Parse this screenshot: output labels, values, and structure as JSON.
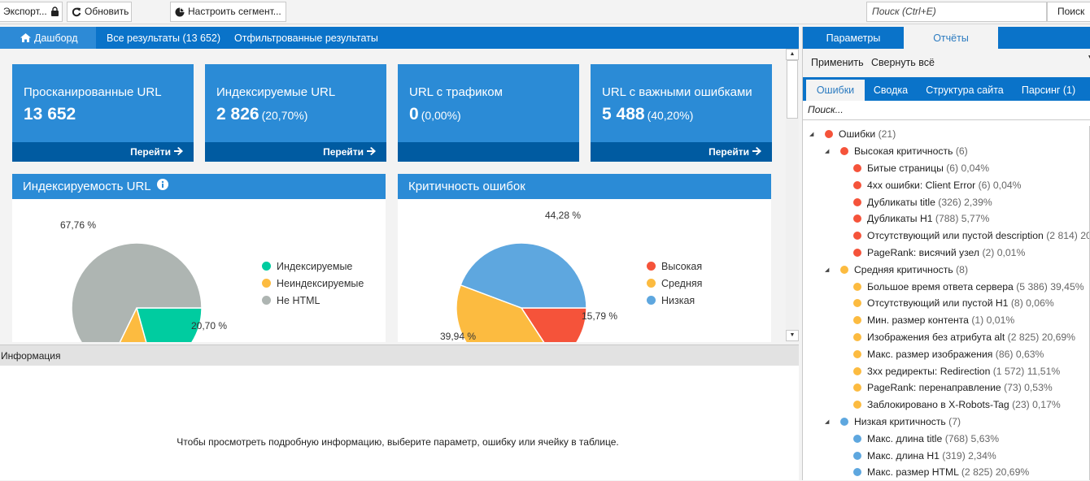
{
  "toolbar": {
    "export_label": "Экспорт...",
    "refresh_label": "Обновить",
    "segment_label": "Настроить сегмент...",
    "search_placeholder": "Поиск (Ctrl+E)",
    "search_button": "Поиск"
  },
  "main_tabs": [
    {
      "label": "Дашборд",
      "icon": "home-icon",
      "active": true
    },
    {
      "label": "Все результаты (13 652)",
      "active": false
    },
    {
      "label": "Отфильтрованные результаты",
      "active": false
    }
  ],
  "cards": [
    {
      "label": "Просканированные URL",
      "value": "13 652",
      "pct": "",
      "link": "Перейти"
    },
    {
      "label": "Индексируемые URL",
      "value": "2 826",
      "pct": "(20,70%)",
      "link": "Перейти"
    },
    {
      "label": "URL с трафиком",
      "value": "0",
      "pct": "(0,00%)",
      "link": ""
    },
    {
      "label": "URL с важными ошибками",
      "value": "5 488",
      "pct": "(40,20%)",
      "link": "Перейти"
    }
  ],
  "colors": {
    "brand_blue": "#0a73c9",
    "card_blue": "#2b8bd6",
    "card_footer": "#005ba1",
    "green": "#00cca0",
    "orange": "#fcbb40",
    "gray": "#aeb5b2",
    "red": "#f5533a",
    "light_blue": "#5ea7df"
  },
  "chart_data": [
    {
      "type": "pie",
      "title": "Индексируемость URL",
      "categories": [
        "Индексируемые",
        "Неиндексируемые",
        "Не HTML"
      ],
      "values": [
        20.7,
        11.54,
        67.76
      ],
      "value_labels": [
        "20,70 %",
        "",
        "67,76 %"
      ],
      "colors": [
        "#00cca0",
        "#fcbb40",
        "#aeb5b2"
      ],
      "legend": "right",
      "unit": "%"
    },
    {
      "type": "pie",
      "title": "Критичность ошибок",
      "categories": [
        "Высокая",
        "Средняя",
        "Низкая"
      ],
      "values": [
        15.79,
        39.94,
        44.28
      ],
      "value_labels": [
        "15,79 %",
        "39,94 %",
        "44,28 %"
      ],
      "colors": [
        "#f5533a",
        "#fcbb40",
        "#5ea7df"
      ],
      "legend": "right",
      "unit": "%"
    }
  ],
  "info": {
    "title": "Информация",
    "message": "Чтобы просмотреть подробную информацию, выберите параметр, ошибку или ячейку в таблице."
  },
  "right_panel": {
    "tabs": [
      {
        "label": "Параметры",
        "active": false
      },
      {
        "label": "Отчёты",
        "active": true
      }
    ],
    "apply_label": "Применить",
    "collapse_label": "Свернуть всё",
    "subtabs": [
      {
        "label": "Ошибки",
        "active": true
      },
      {
        "label": "Сводка",
        "active": false
      },
      {
        "label": "Структура сайта",
        "active": false
      },
      {
        "label": "Парсинг (1)",
        "active": false
      }
    ],
    "search_placeholder": "Поиск...",
    "tree": [
      {
        "level": 0,
        "color": "#f5533a",
        "expanded": true,
        "name": "Ошибки",
        "count": "(21)",
        "pct": ""
      },
      {
        "level": 1,
        "color": "#f5533a",
        "expanded": true,
        "name": "Высокая критичность",
        "count": "(6)",
        "pct": ""
      },
      {
        "level": 2,
        "color": "#f5533a",
        "name": "Битые страницы",
        "count": "(6)",
        "pct": "0,04%"
      },
      {
        "level": 2,
        "color": "#f5533a",
        "name": "4xx ошибки: Client Error",
        "count": "(6)",
        "pct": "0,04%"
      },
      {
        "level": 2,
        "color": "#f5533a",
        "name": "Дубликаты title",
        "count": "(326)",
        "pct": "2,39%"
      },
      {
        "level": 2,
        "color": "#f5533a",
        "name": "Дубликаты H1",
        "count": "(788)",
        "pct": "5,77%"
      },
      {
        "level": 2,
        "color": "#f5533a",
        "name": "Отсутствующий или пустой description",
        "count": "(2 814)",
        "pct": "20"
      },
      {
        "level": 2,
        "color": "#f5533a",
        "name": "PageRank: висячий узел",
        "count": "(2)",
        "pct": "0,01%"
      },
      {
        "level": 1,
        "color": "#fcbb40",
        "expanded": true,
        "name": "Средняя критичность",
        "count": "(8)",
        "pct": ""
      },
      {
        "level": 2,
        "color": "#fcbb40",
        "name": "Большое время ответа сервера",
        "count": "(5 386)",
        "pct": "39,45%"
      },
      {
        "level": 2,
        "color": "#fcbb40",
        "name": "Отсутствующий или пустой H1",
        "count": "(8)",
        "pct": "0,06%"
      },
      {
        "level": 2,
        "color": "#fcbb40",
        "name": "Мин. размер контента",
        "count": "(1)",
        "pct": "0,01%"
      },
      {
        "level": 2,
        "color": "#fcbb40",
        "name": "Изображения без атрибута alt",
        "count": "(2 825)",
        "pct": "20,69%"
      },
      {
        "level": 2,
        "color": "#fcbb40",
        "name": "Макс. размер изображения",
        "count": "(86)",
        "pct": "0,63%"
      },
      {
        "level": 2,
        "color": "#fcbb40",
        "name": "3xx редиректы: Redirection",
        "count": "(1 572)",
        "pct": "11,51%"
      },
      {
        "level": 2,
        "color": "#fcbb40",
        "name": "PageRank: перенаправление",
        "count": "(73)",
        "pct": "0,53%"
      },
      {
        "level": 2,
        "color": "#fcbb40",
        "name": "Заблокировано в X-Robots-Tag",
        "count": "(23)",
        "pct": "0,17%"
      },
      {
        "level": 1,
        "color": "#5ea7df",
        "expanded": true,
        "name": "Низкая критичность",
        "count": "(7)",
        "pct": ""
      },
      {
        "level": 2,
        "color": "#5ea7df",
        "name": "Макс. длина title",
        "count": "(768)",
        "pct": "5,63%"
      },
      {
        "level": 2,
        "color": "#5ea7df",
        "name": "Макс. длина H1",
        "count": "(319)",
        "pct": "2,34%"
      },
      {
        "level": 2,
        "color": "#5ea7df",
        "name": "Макс. размер HTML",
        "count": "(2 825)",
        "pct": "20,69%"
      }
    ]
  }
}
